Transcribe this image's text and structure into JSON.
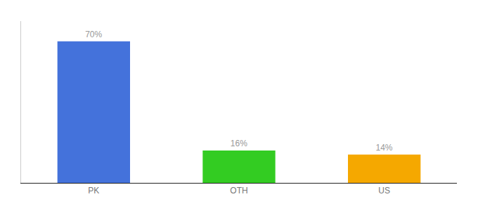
{
  "chart_data": {
    "type": "bar",
    "categories": [
      "PK",
      "OTH",
      "US"
    ],
    "values": [
      70,
      16,
      14
    ],
    "colors": [
      "#4472db",
      "#33cc22",
      "#f5a800"
    ],
    "data_labels": true,
    "value_labels": [
      "70%",
      "16%",
      "14%"
    ],
    "ylim": [
      0,
      80
    ],
    "grid": false,
    "tick_labels": "x"
  }
}
